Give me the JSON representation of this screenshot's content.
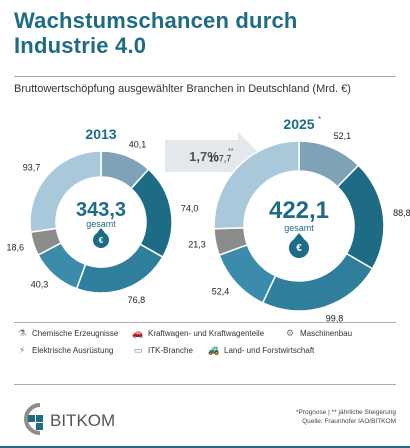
{
  "header": {
    "title_line1": "Wachstumschancen durch",
    "title_line2": "Industrie 4.0",
    "subtitle": "Bruttowertschöpfung ausgewählter Branchen in Deutschland (Mrd. €)"
  },
  "chart_data": {
    "type": "pie",
    "categories": [
      "Chemische Erzeugnisse",
      "Kraftwagen- und Kraftwagenteile",
      "Maschinenbau",
      "Elektrische Ausrüstung",
      "Land- und Forstwirtschaft",
      "ITK-Branche"
    ],
    "series": [
      {
        "year": "2013",
        "values": [
          40.1,
          74.0,
          76.8,
          40.3,
          18.6,
          93.7
        ],
        "labels": [
          "40,1",
          "74,0",
          "76,8",
          "40,3",
          "18,6",
          "93,7"
        ],
        "total": "343,3",
        "total_label": "gesamt"
      },
      {
        "year": "2025",
        "year_mark": "*",
        "values": [
          52.1,
          88.8,
          99.8,
          52.4,
          21.3,
          107.7
        ],
        "labels": [
          "52,1",
          "88,8",
          "99,8",
          "52,4",
          "21,3",
          "107,7"
        ],
        "total": "422,1",
        "total_label": "gesamt"
      }
    ],
    "growth": {
      "value": "1,7%",
      "mark": "**"
    },
    "colors": [
      "#7fa2b6",
      "#1e6b86",
      "#2f7e9b",
      "#3b8caa",
      "#8c8c8c",
      "#a9c9db"
    ],
    "legend_placement": "bottom"
  },
  "legend": {
    "items": [
      {
        "label": "Chemische Erzeugnisse",
        "icon": "flask-icon"
      },
      {
        "label": "Kraftwagen- und Kraftwagenteile",
        "icon": "car-icon"
      },
      {
        "label": "Maschinenbau",
        "icon": "gears-icon"
      },
      {
        "label": "Elektrische Ausrüstung",
        "icon": "plug-icon"
      },
      {
        "label": "ITK-Branche",
        "icon": "monitor-icon"
      },
      {
        "label": "Land- und Forstwirtschaft",
        "icon": "tractor-icon"
      }
    ]
  },
  "footer": {
    "note_line1": "*Prognose | ** jährliche Steigerung",
    "note_line2": "Quelle: Fraunhofer IAO/BITKOM",
    "logo_text": "BITKOM"
  }
}
